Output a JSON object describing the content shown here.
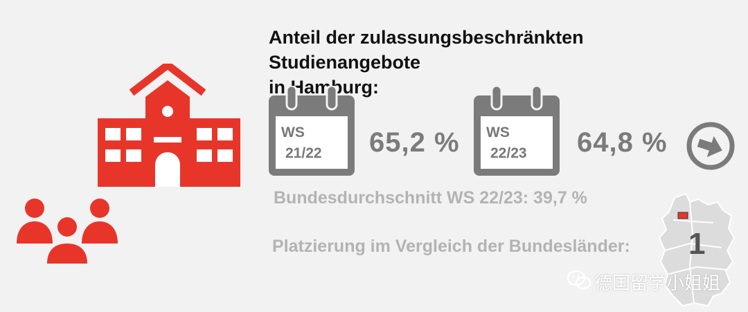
{
  "title_line1": "Anteil der zulassungsbeschränkten Studienangebote",
  "title_line2": "in Hamburg:",
  "calendars": [
    {
      "label_line1": "WS",
      "label_line2": "21/22",
      "value": "65,2 %"
    },
    {
      "label_line1": "WS",
      "label_line2": "22/23",
      "value": "64,8 %"
    }
  ],
  "average": "Bundesdurchschnitt WS 22/23: 39,7 %",
  "ranking_label": "Platzierung im Vergleich der Bundesländer:",
  "rank": "1",
  "watermark": "德国留学小姐姐",
  "icons": {
    "school": "school-building-icon",
    "people": "people-group-icon",
    "calendar": "calendar-icon",
    "arrow": "arrow-right-circle-icon",
    "map": "germany-map-icon",
    "wechat": "wechat-icon"
  },
  "colors": {
    "accent_red": "#e8352a",
    "gray_dark": "#7b7b7b",
    "gray_light": "#b3b3b3",
    "background": "#f2f2f2"
  }
}
